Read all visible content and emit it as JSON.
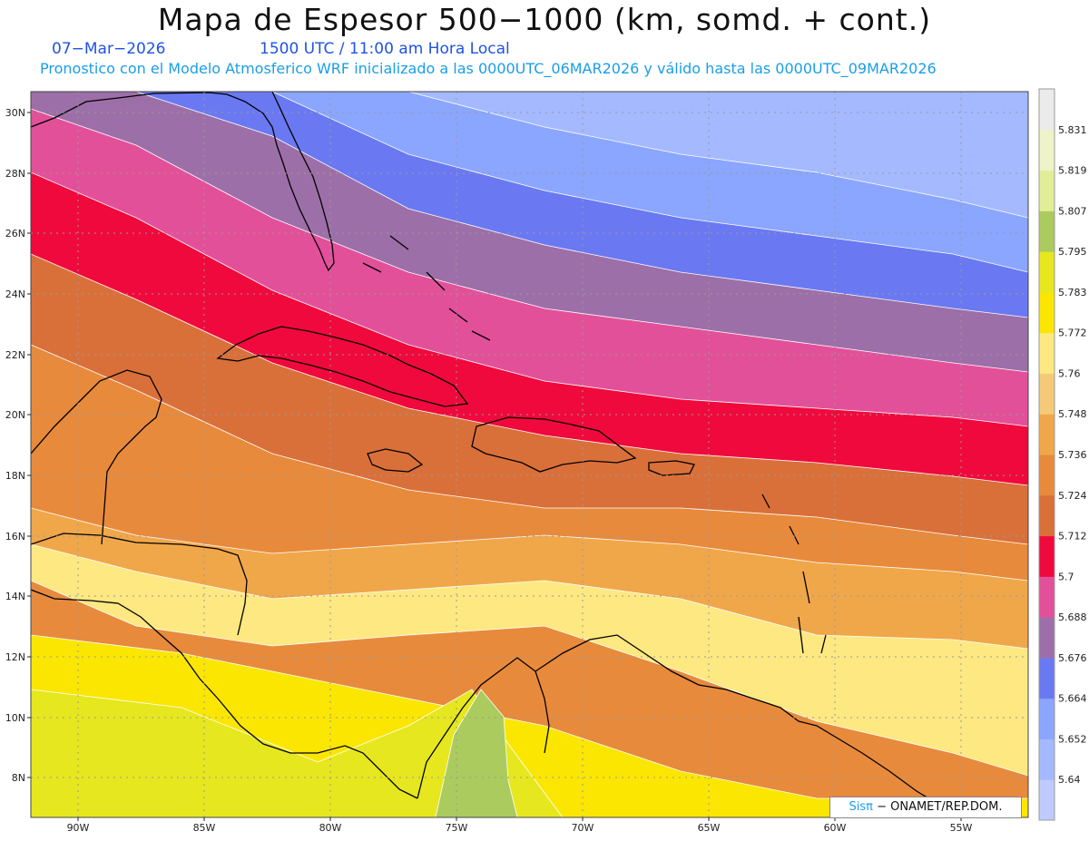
{
  "header": {
    "title": "Mapa de Espesor 500−1000 (km, somd. + cont.)",
    "date": "07−Mar−2026",
    "time": "1500 UTC / 11:00 am Hora Local",
    "description": "Pronostico con el Modelo Atmosferico WRF inicializado a las 0000UTC_06MAR2026 y válido hasta las  0000UTC_09MAR2026"
  },
  "credit": {
    "brand": "Sisπ",
    "text": "− ONAMET/REP.DOM."
  },
  "axes": {
    "lat_labels": [
      "30N",
      "28N",
      "26N",
      "24N",
      "22N",
      "20N",
      "18N",
      "16N",
      "14N",
      "12N",
      "10N",
      "8N"
    ],
    "lon_labels": [
      "90W",
      "85W",
      "80W",
      "75W",
      "70W",
      "65W",
      "60W",
      "55W"
    ]
  },
  "legend": {
    "unit": "km",
    "levels": [
      "5.64",
      "5.652",
      "5.664",
      "5.676",
      "5.688",
      "5.7",
      "5.712",
      "5.724",
      "5.736",
      "5.748",
      "5.76",
      "5.772",
      "5.783",
      "5.795",
      "5.807",
      "5.819",
      "5.831"
    ],
    "colors": [
      "#bfcaff",
      "#a4b9ff",
      "#8aa6ff",
      "#6a79f2",
      "#9d6fa8",
      "#e3509a",
      "#f0093c",
      "#d9703a",
      "#e88a3c",
      "#f0a74a",
      "#f4ca78",
      "#fde882",
      "#fae600",
      "#e6e71e",
      "#abcb5e",
      "#e2ee97",
      "#eef3c9",
      "#ebebeb"
    ]
  },
  "colors": {
    "text_blue": "#1f52e6",
    "text_cyan": "#1a9ee8"
  }
}
